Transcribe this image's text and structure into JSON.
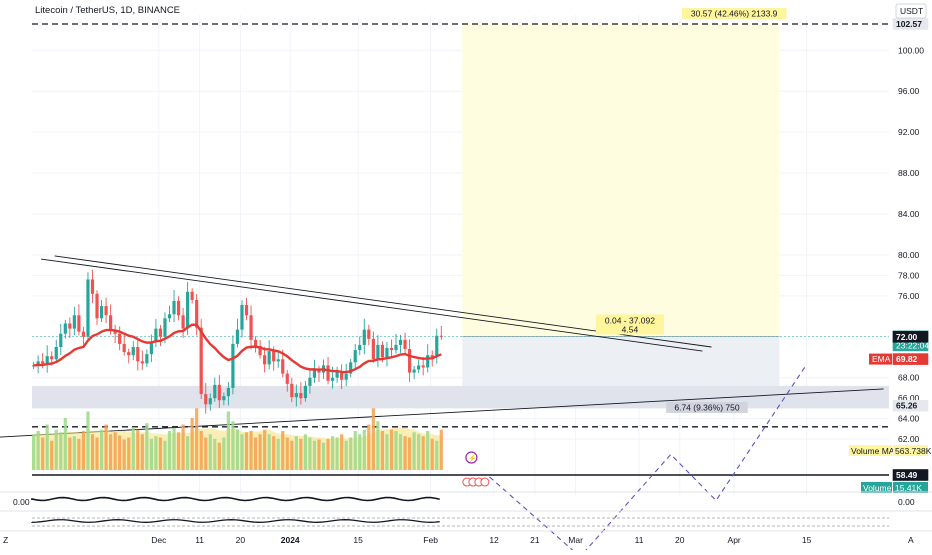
{
  "header": {
    "symbol_title": "Litecoin / TetherUS, 1D, BINANCE",
    "currency_button": "USDT"
  },
  "colors": {
    "up": "#26a69a",
    "down": "#ef5350",
    "ema": "#e53935",
    "volume_ma": "#f4e27a",
    "target_zone": "#fffde0",
    "stop_zone": "#eceff4",
    "projection": "#5c50c8",
    "grid": "#f0f3fa"
  },
  "chart_data": {
    "type": "candlestick",
    "title": "Litecoin / TetherUS, 1D, BINANCE",
    "y_axis": {
      "ticks": [
        62,
        64,
        66,
        68,
        72,
        76,
        78,
        80,
        84,
        88,
        92,
        96,
        100
      ],
      "tick_labels": [
        "62.00",
        "64.00",
        "66.00",
        "68.00",
        "72.00",
        "76.00",
        "78.00",
        "80.00",
        "84.00",
        "88.00",
        "92.00",
        "96.00",
        "100.00"
      ],
      "range": [
        58,
        104
      ]
    },
    "x_axis": {
      "labels": [
        "Dec",
        "11",
        "20",
        "2024",
        "15",
        "Feb",
        "12",
        "21",
        "Mar",
        "11",
        "20",
        "Apr",
        "15"
      ],
      "label_positions": [
        28,
        37,
        46,
        57,
        72,
        88,
        102,
        111,
        120,
        134,
        143,
        155,
        171
      ],
      "range": [
        0,
        178
      ]
    },
    "ohlc_note": "daily candles, Nov 25 2023 to Feb 24 2024",
    "price_badges": [
      {
        "value": "102.57",
        "price": 102.57,
        "kind": "level"
      },
      {
        "value": "72.04",
        "sub": "23:22:04",
        "price": 72.04,
        "kind": "last"
      },
      {
        "value": "72.00",
        "price": 72.0,
        "kind": "black"
      },
      {
        "value": "69.82",
        "price": 69.82,
        "kind": "ema",
        "label": "EMA"
      },
      {
        "value": "65.26",
        "price": 65.26,
        "kind": "level"
      },
      {
        "value": "58.49",
        "price": 58.49,
        "kind": "black"
      }
    ],
    "ema_label": "EMA",
    "volume_ma_label": "Volume MA",
    "volume_ma_value": "563.738K",
    "volume_label": "Volume",
    "volume_value": "15.41K",
    "annotations": {
      "target": "30.57 (42.46%) 2133.9",
      "entry": "0.04 - 37.092",
      "entry_sub": "4.54",
      "stop": "6.74 (9.36%) 750"
    },
    "levels": {
      "resistance": 102.57,
      "support": 63.2,
      "line_5849": 58.49
    },
    "lower_pane": {
      "left_value": "0.00",
      "right_value": "0.00"
    },
    "footer_left": "Z",
    "footer_right": "A"
  }
}
